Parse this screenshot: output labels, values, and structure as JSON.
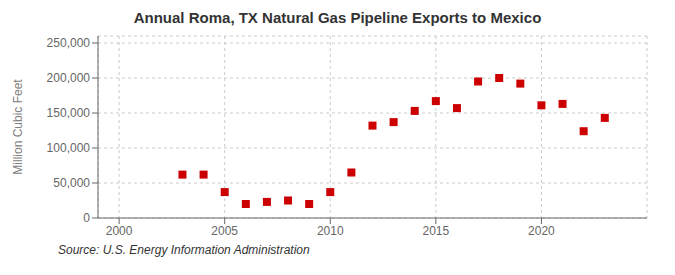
{
  "chart_data": {
    "type": "scatter",
    "title": "Annual Roma, TX Natural Gas Pipeline Exports to Mexico",
    "ylabel": "Million Cubic Feet",
    "annotation": "Source: U.S. Energy Information Administration",
    "x": [
      2003,
      2004,
      2005,
      2006,
      2007,
      2008,
      2009,
      2010,
      2011,
      2012,
      2013,
      2014,
      2015,
      2016,
      2017,
      2018,
      2019,
      2020,
      2021,
      2022,
      2023
    ],
    "values": [
      62000,
      62000,
      37000,
      20000,
      23000,
      25000,
      20000,
      37000,
      65000,
      132000,
      137000,
      153000,
      167000,
      157000,
      195000,
      200000,
      192000,
      161000,
      163000,
      124000,
      143000
    ],
    "color": "#cc0000",
    "marker": "square",
    "grid": true,
    "xlim": [
      1999,
      2025
    ],
    "xticks": [
      2000,
      2005,
      2010,
      2015,
      2020
    ],
    "ylim": [
      0,
      260000
    ],
    "yticks": [
      0,
      {
        "value": 50000,
        "label": "50,000"
      },
      {
        "value": 100000,
        "label": "100,000"
      },
      {
        "value": 150000,
        "label": "150,000"
      },
      {
        "value": 200000,
        "label": "200,000"
      },
      {
        "value": 250000,
        "label": "250,000"
      }
    ]
  }
}
